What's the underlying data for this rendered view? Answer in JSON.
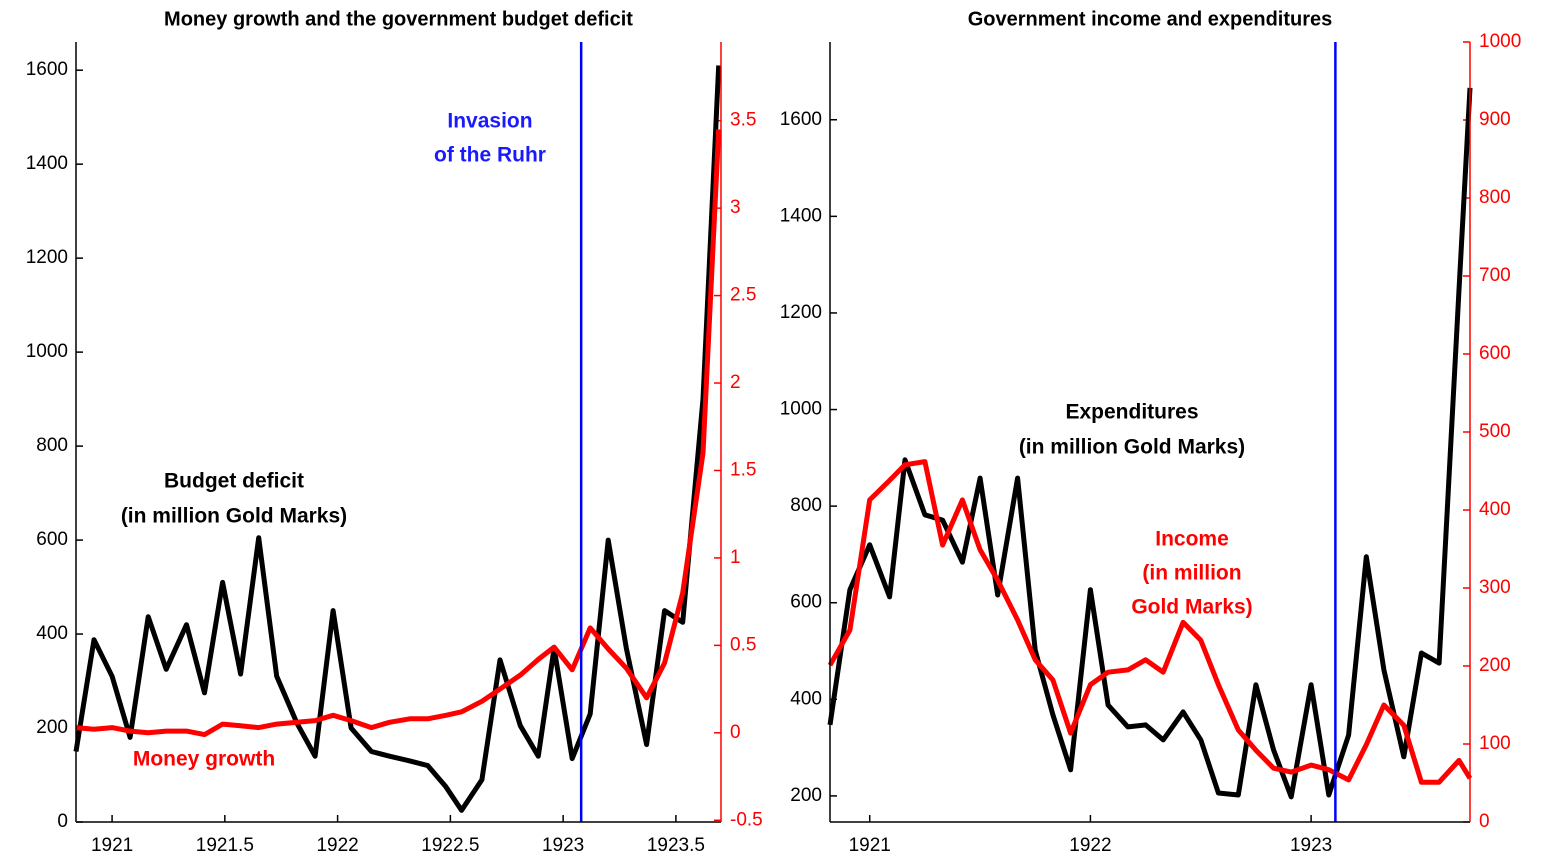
{
  "chart_data": [
    {
      "type": "line",
      "title": "Money growth and the government budget deficit",
      "x": [
        1920.84,
        1920.92,
        1921.0,
        1921.08,
        1921.16,
        1921.24,
        1921.33,
        1921.41,
        1921.49,
        1921.57,
        1921.65,
        1921.73,
        1921.82,
        1921.9,
        1921.98,
        1922.06,
        1922.15,
        1922.23,
        1922.32,
        1922.4,
        1922.48,
        1922.55,
        1922.64,
        1922.72,
        1922.81,
        1922.89,
        1922.96,
        1923.04,
        1923.12,
        1923.2,
        1923.28,
        1923.37,
        1923.45,
        1923.53,
        1923.62,
        1923.69
      ],
      "series": [
        {
          "color": "#000000",
          "values": [
            150,
            388,
            310,
            180,
            437,
            325,
            420,
            275,
            510,
            315,
            605,
            310,
            210,
            140,
            450,
            200,
            150,
            140,
            130,
            120,
            75,
            25,
            90,
            345,
            205,
            140,
            370,
            135,
            230,
            600,
            370,
            165,
            450,
            425,
            900,
            1610
          ]
        },
        {
          "color": "#ff0000",
          "axis": "y2",
          "values": [
            0.03,
            0.02,
            0.03,
            0.01,
            0.0,
            0.01,
            0.01,
            -0.01,
            0.05,
            0.04,
            0.03,
            0.05,
            0.06,
            0.07,
            0.1,
            0.07,
            0.03,
            0.06,
            0.08,
            0.08,
            0.1,
            0.12,
            0.18,
            0.25,
            0.33,
            0.42,
            0.49,
            0.36,
            0.6,
            0.48,
            0.37,
            0.2,
            0.4,
            0.8,
            1.6,
            3.45
          ]
        }
      ],
      "xlim": [
        1920.84,
        1923.7
      ],
      "xticks": [
        1921,
        1921.5,
        1922,
        1922.5,
        1923,
        1923.5
      ],
      "ylim": [
        0,
        1660
      ],
      "yticks": [
        0,
        200,
        400,
        600,
        800,
        1000,
        1200,
        1400,
        1600
      ],
      "y2lim": [
        -0.51,
        3.95
      ],
      "y2ticks": [
        -0.5,
        0,
        0.5,
        1,
        1.5,
        2,
        2.5,
        3,
        3.5
      ],
      "y2color": "#ff0000",
      "vline": {
        "x": 1923.08,
        "color": "#0000ff"
      },
      "annotations": [
        {
          "text": "Invasion",
          "color": "#1a1aff"
        },
        {
          "text": "of the Ruhr",
          "color": "#1a1aff"
        },
        {
          "text": "Budget deficit",
          "color": "#000000"
        },
        {
          "text": "(in million Gold Marks)",
          "color": "#000000"
        },
        {
          "text": "Money growth",
          "color": "#ff0000"
        }
      ]
    },
    {
      "type": "line",
      "title": "Government income and expenditures",
      "x": [
        1920.82,
        1920.91,
        1921.0,
        1921.09,
        1921.16,
        1921.25,
        1921.33,
        1921.42,
        1921.5,
        1921.58,
        1921.67,
        1921.75,
        1921.83,
        1921.91,
        1922.0,
        1922.08,
        1922.17,
        1922.25,
        1922.33,
        1922.42,
        1922.5,
        1922.58,
        1922.67,
        1922.75,
        1922.83,
        1922.91,
        1923.0,
        1923.08,
        1923.17,
        1923.25,
        1923.33,
        1923.42,
        1923.5,
        1923.58,
        1923.67,
        1923.72
      ],
      "series": [
        {
          "color": "#000000",
          "values": [
            347,
            627,
            720,
            612,
            896,
            782,
            771,
            684,
            858,
            616,
            858,
            502,
            368,
            254,
            627,
            388,
            343,
            347,
            316,
            374,
            316,
            206,
            202,
            430,
            295,
            198,
            430,
            202,
            326,
            695,
            461,
            281,
            496,
            475,
            1248,
            1666
          ]
        },
        {
          "color": "#ff0000",
          "axis": "y2",
          "values": [
            201,
            246,
            413,
            438,
            458,
            462,
            355,
            413,
            349,
            310,
            259,
            208,
            182,
            114,
            176,
            192,
            195,
            208,
            192,
            256,
            233,
            176,
            118,
            92,
            69,
            64,
            73,
            67,
            54,
            99,
            150,
            124,
            51,
            51,
            79,
            56
          ]
        }
      ],
      "xlim": [
        1920.82,
        1923.72
      ],
      "xticks": [
        1921,
        1922,
        1923
      ],
      "ylim": [
        146,
        1761
      ],
      "yticks": [
        200,
        400,
        600,
        800,
        1000,
        1200,
        1400,
        1600
      ],
      "y2lim": [
        0,
        1000
      ],
      "y2ticks": [
        0,
        100,
        200,
        300,
        400,
        500,
        600,
        700,
        800,
        900,
        1000
      ],
      "y2color": "#ff0000",
      "vline": {
        "x": 1923.11,
        "color": "#0000ff"
      },
      "annotations": [
        {
          "text": "Expenditures",
          "color": "#000000"
        },
        {
          "text": "(in million Gold Marks)",
          "color": "#000000"
        },
        {
          "text": "Income",
          "color": "#ff0000"
        },
        {
          "text": "(in million",
          "color": "#ff0000"
        },
        {
          "text": "Gold Marks)",
          "color": "#ff0000"
        }
      ]
    }
  ]
}
